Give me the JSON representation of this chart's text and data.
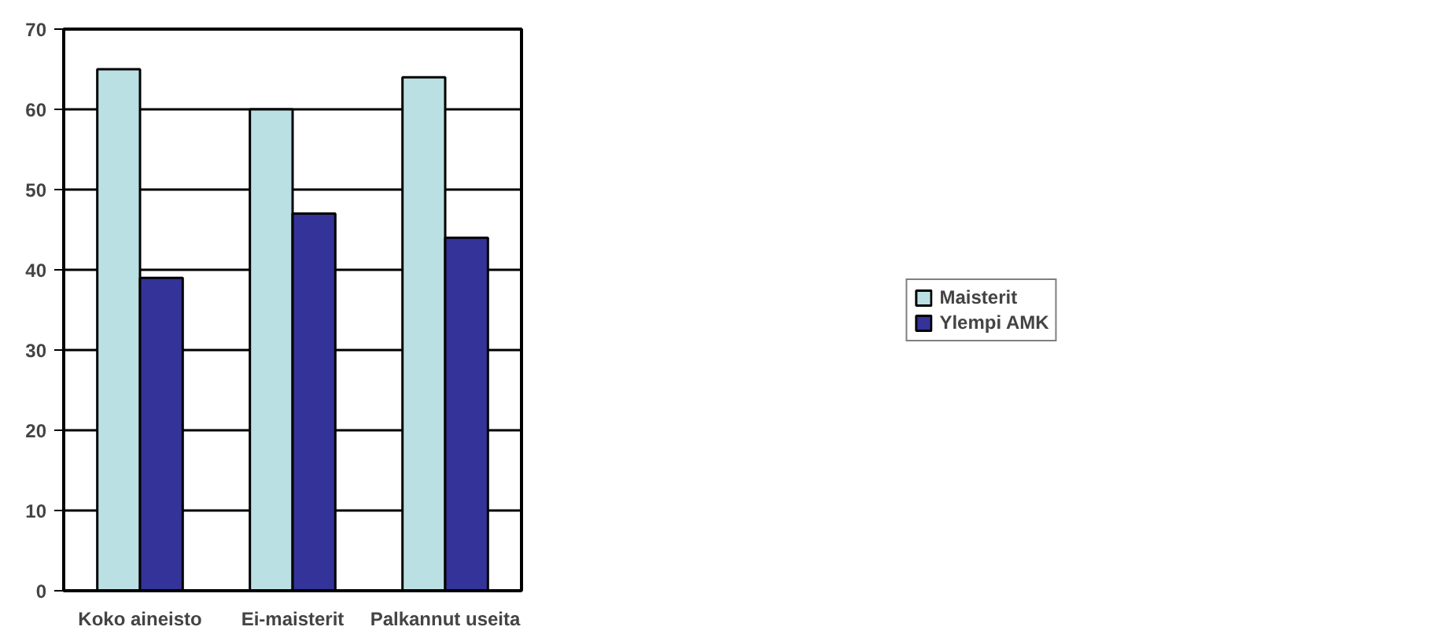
{
  "chart_data": {
    "type": "bar",
    "categories": [
      "Koko aineisto",
      "Ei-maisterit",
      "Palkannut useita"
    ],
    "series": [
      {
        "name": "Maisterit",
        "color": "#bae0e3",
        "values": [
          65,
          60,
          64
        ]
      },
      {
        "name": "Ylempi AMK",
        "color": "#333399",
        "values": [
          39,
          47,
          44
        ]
      }
    ],
    "ylim": [
      0,
      70
    ],
    "yticks": [
      0,
      10,
      20,
      30,
      40,
      50,
      60,
      70
    ],
    "grid": "y",
    "legend": "right"
  }
}
